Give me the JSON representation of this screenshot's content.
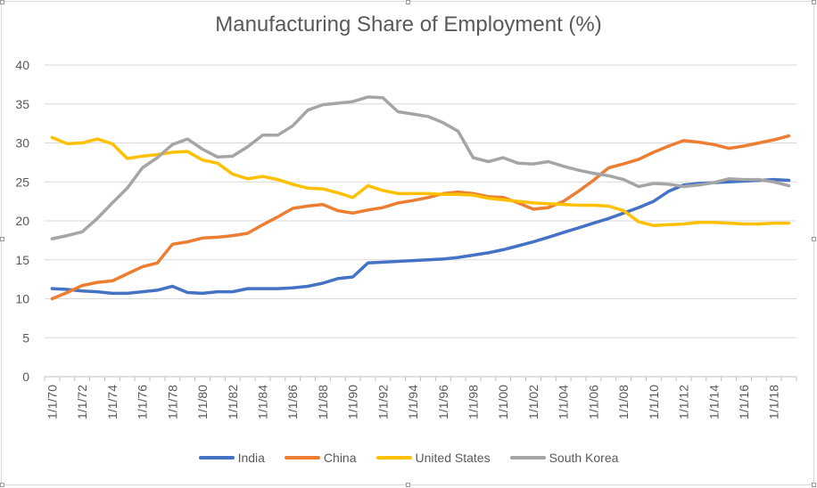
{
  "chart_data": {
    "type": "line",
    "title": "Manufacturing Share of Employment (%)",
    "xlabel": "",
    "ylabel": "",
    "ylim": [
      0,
      40
    ],
    "yticks": [
      0,
      5,
      10,
      15,
      20,
      25,
      30,
      35,
      40
    ],
    "grid": "horizontal",
    "legend_position": "bottom",
    "x": [
      1970,
      1971,
      1972,
      1973,
      1974,
      1975,
      1976,
      1977,
      1978,
      1979,
      1980,
      1981,
      1982,
      1983,
      1984,
      1985,
      1986,
      1987,
      1988,
      1989,
      1990,
      1991,
      1992,
      1993,
      1994,
      1995,
      1996,
      1997,
      1998,
      1999,
      2000,
      2001,
      2002,
      2003,
      2004,
      2005,
      2006,
      2007,
      2008,
      2009,
      2010,
      2011,
      2012,
      2013,
      2014,
      2015,
      2016,
      2017,
      2018,
      2019
    ],
    "tick_labels": [
      "1/1/70",
      "1/1/72",
      "1/1/74",
      "1/1/76",
      "1/1/78",
      "1/1/80",
      "1/1/82",
      "1/1/84",
      "1/1/86",
      "1/1/88",
      "1/1/90",
      "1/1/92",
      "1/1/94",
      "1/1/96",
      "1/1/98",
      "1/1/00",
      "1/1/02",
      "1/1/04",
      "1/1/06",
      "1/1/08",
      "1/1/10",
      "1/1/12",
      "1/1/14",
      "1/1/16",
      "1/1/18"
    ],
    "series": [
      {
        "name": "India",
        "color": "#4472c4",
        "values": [
          11.3,
          11.2,
          11.0,
          10.9,
          10.7,
          10.7,
          10.9,
          11.1,
          11.6,
          10.8,
          10.7,
          10.9,
          10.9,
          11.3,
          11.3,
          11.3,
          11.4,
          11.6,
          12.0,
          12.6,
          12.8,
          14.6,
          14.7,
          14.8,
          14.9,
          15.0,
          15.1,
          15.3,
          15.6,
          15.9,
          16.3,
          16.8,
          17.3,
          17.9,
          18.5,
          19.1,
          19.7,
          20.3,
          21.0,
          21.7,
          22.5,
          23.8,
          24.6,
          24.8,
          24.9,
          25.0,
          25.1,
          25.2,
          25.3,
          25.2
        ]
      },
      {
        "name": "China",
        "color": "#ed7d31",
        "values": [
          10.0,
          10.8,
          11.7,
          12.1,
          12.3,
          13.2,
          14.1,
          14.6,
          17.0,
          17.3,
          17.8,
          17.9,
          18.1,
          18.4,
          19.5,
          20.5,
          21.6,
          21.9,
          22.1,
          21.3,
          21.0,
          21.4,
          21.7,
          22.3,
          22.6,
          23.0,
          23.5,
          23.7,
          23.5,
          23.1,
          23.0,
          22.3,
          21.5,
          21.7,
          22.5,
          23.8,
          25.2,
          26.8,
          27.3,
          27.9,
          28.8,
          29.6,
          30.3,
          30.1,
          29.8,
          29.3,
          29.6,
          30.0,
          30.4,
          30.9
        ]
      },
      {
        "name": "United States",
        "color": "#ffc000",
        "values": [
          30.7,
          29.9,
          30.0,
          30.5,
          29.9,
          28.0,
          28.3,
          28.5,
          28.8,
          28.9,
          27.8,
          27.4,
          26.0,
          25.4,
          25.7,
          25.3,
          24.7,
          24.2,
          24.1,
          23.6,
          23.0,
          24.5,
          23.9,
          23.5,
          23.5,
          23.5,
          23.4,
          23.4,
          23.3,
          22.9,
          22.7,
          22.5,
          22.3,
          22.2,
          22.1,
          22.0,
          22.0,
          21.9,
          21.3,
          19.9,
          19.4,
          19.5,
          19.6,
          19.8,
          19.8,
          19.7,
          19.6,
          19.6,
          19.7,
          19.7
        ]
      },
      {
        "name": "South Korea",
        "color": "#a5a5a5",
        "values": [
          17.7,
          18.1,
          18.6,
          20.3,
          22.3,
          24.2,
          26.8,
          28.1,
          29.8,
          30.5,
          29.2,
          28.2,
          28.3,
          29.5,
          31.0,
          31.0,
          32.2,
          34.2,
          34.9,
          35.1,
          35.3,
          35.9,
          35.8,
          34.0,
          33.7,
          33.4,
          32.6,
          31.5,
          28.1,
          27.6,
          28.1,
          27.4,
          27.3,
          27.6,
          27.0,
          26.5,
          26.1,
          25.8,
          25.3,
          24.4,
          24.8,
          24.7,
          24.4,
          24.6,
          24.9,
          25.4,
          25.3,
          25.3,
          25.0,
          24.5
        ]
      }
    ]
  }
}
